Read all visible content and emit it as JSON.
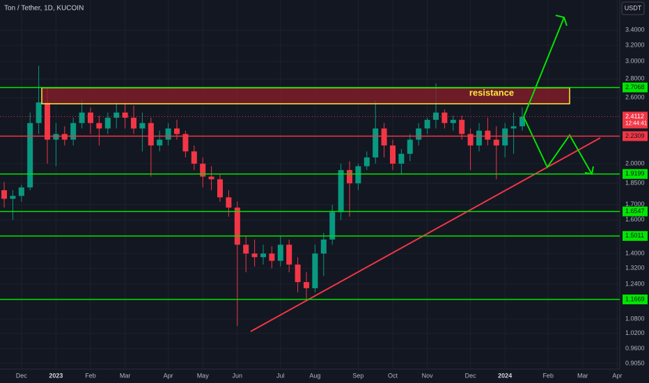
{
  "chart_data": {
    "type": "candlestick",
    "title": "Ton / Tether, 1D, KUCOIN",
    "currency": "USDT",
    "log_scale": true,
    "up_color": "#089981",
    "down_color": "#f23645",
    "categories": [
      null,
      null,
      "Dec",
      null,
      null,
      null,
      "2023",
      null,
      null,
      null,
      "Feb",
      null,
      null,
      null,
      "Mar",
      null,
      null,
      null,
      null,
      "Apr",
      null,
      null,
      null,
      "May",
      null,
      null,
      null,
      "Jun",
      null,
      null,
      null,
      null,
      "Jul",
      null,
      null,
      null,
      "Aug",
      null,
      null,
      null,
      null,
      "Sep",
      null,
      null,
      null,
      "Oct",
      null,
      null,
      null,
      "Nov",
      null,
      null,
      null,
      null,
      "Dec",
      null,
      null,
      null,
      "2024",
      null,
      null,
      null,
      null,
      "Feb",
      null,
      null,
      null,
      "Mar",
      null,
      null,
      null,
      "Apr"
    ],
    "open": [
      1.8,
      1.74,
      1.76,
      1.82,
      2.35,
      2.55,
      2.2,
      2.25,
      2.2,
      2.35,
      2.45,
      2.35,
      2.3,
      2.4,
      2.45,
      2.4,
      2.3,
      2.35,
      2.15,
      2.2,
      2.3,
      2.25,
      2.1,
      2.0,
      1.9,
      1.88,
      1.75,
      1.68,
      1.45,
      1.4,
      1.38,
      1.4,
      1.36,
      1.45,
      1.34,
      1.25,
      1.22,
      1.4,
      1.48,
      1.65,
      1.95,
      1.85,
      1.98,
      2.05,
      2.3,
      2.15,
      2.0,
      2.08,
      2.2,
      2.3,
      2.38,
      2.45,
      2.35,
      2.38,
      2.25,
      2.15,
      2.28,
      2.2,
      2.15,
      2.3,
      2.32,
      null,
      null,
      null,
      null,
      null,
      null,
      null,
      null,
      null,
      null,
      null
    ],
    "high": [
      1.86,
      1.8,
      1.84,
      2.45,
      2.95,
      2.7,
      2.35,
      2.32,
      2.4,
      2.58,
      2.5,
      2.42,
      2.45,
      2.55,
      2.55,
      2.52,
      2.45,
      2.4,
      2.28,
      2.35,
      2.38,
      2.28,
      2.15,
      2.05,
      1.98,
      1.92,
      1.8,
      1.72,
      1.5,
      1.48,
      1.45,
      1.44,
      1.5,
      1.48,
      1.38,
      1.3,
      1.45,
      1.52,
      1.7,
      2.0,
      2.02,
      2.0,
      2.1,
      2.57,
      2.35,
      2.2,
      2.12,
      2.25,
      2.35,
      2.4,
      2.75,
      2.48,
      2.42,
      2.42,
      2.3,
      2.35,
      2.4,
      2.32,
      2.35,
      2.45,
      2.5,
      null,
      null,
      null,
      null,
      null,
      null,
      null,
      null,
      null,
      null,
      null
    ],
    "low": [
      1.68,
      1.6,
      1.72,
      1.8,
      2.25,
      2.0,
      1.98,
      2.15,
      2.15,
      2.3,
      2.25,
      2.15,
      2.25,
      2.3,
      2.3,
      2.25,
      2.1,
      1.9,
      2.1,
      2.15,
      2.2,
      2.05,
      1.95,
      1.82,
      1.8,
      1.72,
      1.62,
      1.05,
      1.3,
      1.33,
      1.34,
      1.32,
      1.33,
      1.3,
      1.2,
      1.16,
      1.2,
      1.28,
      1.45,
      1.6,
      1.62,
      1.8,
      1.95,
      2.0,
      2.05,
      1.95,
      1.92,
      2.02,
      2.15,
      2.25,
      2.3,
      2.3,
      2.28,
      2.2,
      1.95,
      2.1,
      2.15,
      1.88,
      2.05,
      2.08,
      2.28,
      null,
      null,
      null,
      null,
      null,
      null,
      null,
      null,
      null,
      null,
      null
    ],
    "close": [
      1.74,
      1.76,
      1.82,
      2.35,
      2.55,
      2.2,
      2.25,
      2.2,
      2.35,
      2.45,
      2.35,
      2.3,
      2.4,
      2.45,
      2.4,
      2.3,
      2.35,
      2.15,
      2.2,
      2.3,
      2.25,
      2.1,
      2.0,
      1.9,
      1.88,
      1.75,
      1.68,
      1.45,
      1.4,
      1.38,
      1.4,
      1.36,
      1.45,
      1.34,
      1.25,
      1.22,
      1.4,
      1.48,
      1.65,
      1.95,
      1.85,
      1.98,
      2.05,
      2.3,
      2.15,
      2.0,
      2.08,
      2.2,
      2.3,
      2.38,
      2.45,
      2.35,
      2.38,
      2.25,
      2.15,
      2.28,
      2.2,
      2.15,
      2.3,
      2.32,
      2.41,
      null,
      null,
      null,
      null,
      null,
      null,
      null,
      null,
      null,
      null,
      null
    ],
    "ylim": [
      0.885,
      3.83
    ],
    "yticks": [
      {
        "value": 3.4,
        "label": "3.4000"
      },
      {
        "value": 3.2,
        "label": "3.2000"
      },
      {
        "value": 3.0,
        "label": "3.0000"
      },
      {
        "value": 2.8,
        "label": "2.8000"
      },
      {
        "value": 2.6,
        "label": "2.6000"
      },
      {
        "value": 2.0,
        "label": "2.0000"
      },
      {
        "value": 1.85,
        "label": "1.8500"
      },
      {
        "value": 1.7,
        "label": "1.7000"
      },
      {
        "value": 1.6,
        "label": "1.6000"
      },
      {
        "value": 1.4,
        "label": "1.4000"
      },
      {
        "value": 1.32,
        "label": "1.3200"
      },
      {
        "value": 1.24,
        "label": "1.2400"
      },
      {
        "value": 1.08,
        "label": "1.0800"
      },
      {
        "value": 1.02,
        "label": "1.0200"
      },
      {
        "value": 0.96,
        "label": "0.9600"
      },
      {
        "value": 0.905,
        "label": "0.9050"
      }
    ],
    "levels": [
      2.7068,
      2.2309,
      1.9199,
      1.6547,
      1.5011,
      1.1669
    ],
    "level_colors": [
      "#00e600",
      "#f23645",
      "#00e600",
      "#00e600",
      "#00e600",
      "#00e600"
    ],
    "last_price": {
      "value": 2.4112,
      "label": "2.4112"
    },
    "countdown": "12:44:41",
    "annotation": "resistance"
  }
}
